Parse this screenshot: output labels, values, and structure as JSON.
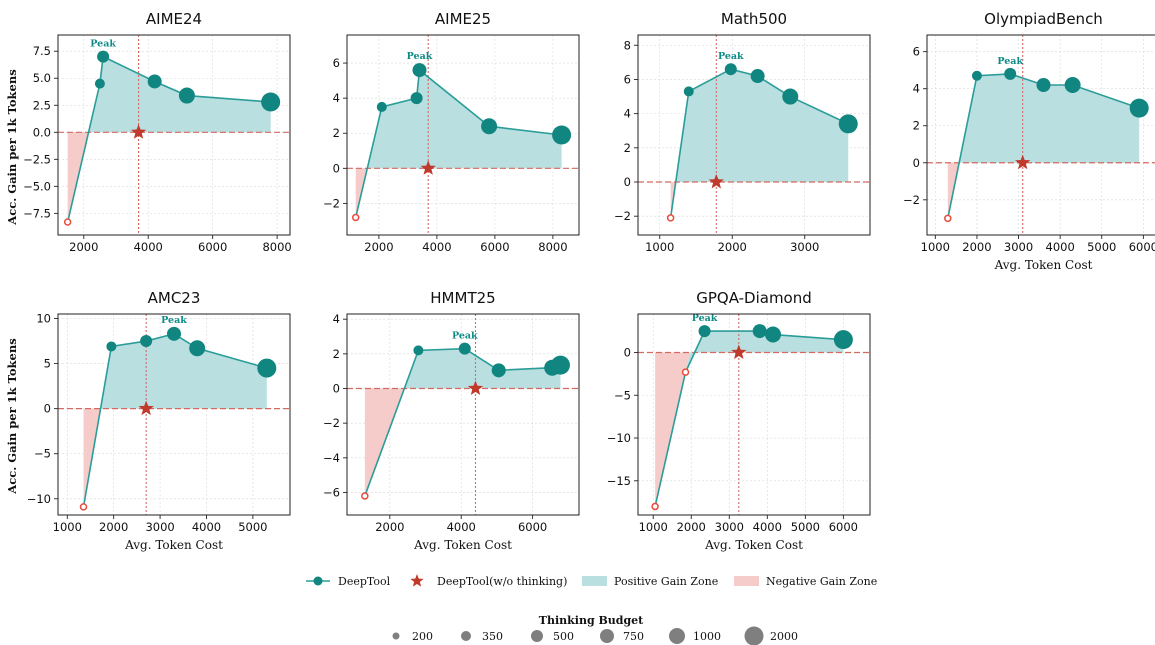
{
  "figure": {
    "y_axis_label": "Acc. Gain per 1k Tokens",
    "x_axis_label": "Avg. Token Cost"
  },
  "colors": {
    "line": "#2a9d99",
    "marker": "#11857f",
    "positive_fill": "#b9dfe0",
    "negative_fill": "#f6cccb",
    "baseline": "#d26a62",
    "star": "#c0392b",
    "neg_marker_edge": "#e74c3c",
    "peak_text": "#0e8a87"
  },
  "legend": {
    "items": [
      {
        "label": "DeepTool",
        "kind": "line-marker"
      },
      {
        "label": "DeepTool(w/o thinking)",
        "kind": "star"
      },
      {
        "label": "Positive Gain Zone",
        "kind": "pos-patch"
      },
      {
        "label": "Negative Gain Zone",
        "kind": "neg-patch"
      }
    ],
    "budget_title": "Thinking Budget",
    "budgets": [
      "200",
      "350",
      "500",
      "750",
      "1000",
      "2000"
    ]
  },
  "chart_data": [
    {
      "type": "line",
      "title": "AIME24",
      "xlabel": "",
      "ylabel": "Acc. Gain per 1k Tokens",
      "xlim": [
        1200,
        8400
      ],
      "ylim": [
        -9.5,
        9.0
      ],
      "xticks": [
        2000,
        4000,
        6000,
        8000
      ],
      "yticks": [
        -7.5,
        -5.0,
        -2.5,
        0.0,
        2.5,
        5.0,
        7.5
      ],
      "ytick_labels": [
        "−7.5",
        "−5.0",
        "−2.5",
        "0.0",
        "2.5",
        "5.0",
        "7.5"
      ],
      "x": [
        1500,
        2500,
        2600,
        4200,
        5200,
        7800
      ],
      "y": [
        -8.3,
        4.5,
        7.0,
        4.7,
        3.4,
        2.8
      ],
      "budget": [
        200,
        350,
        500,
        750,
        1000,
        2000
      ],
      "peak_label": "Peak",
      "peak_index": 2,
      "star": {
        "x": 3700,
        "y": 0.0
      }
    },
    {
      "type": "line",
      "title": "AIME25",
      "xlabel": "",
      "ylabel": "",
      "xlim": [
        900,
        8900
      ],
      "ylim": [
        -3.8,
        7.6
      ],
      "xticks": [
        2000,
        4000,
        6000,
        8000
      ],
      "yticks": [
        -2,
        0,
        2,
        4,
        6
      ],
      "ytick_labels": [
        "−2",
        "0",
        "2",
        "4",
        "6"
      ],
      "x": [
        1200,
        2100,
        3300,
        3400,
        5800,
        8300
      ],
      "y": [
        -2.8,
        3.5,
        4.0,
        5.6,
        2.4,
        1.9
      ],
      "budget": [
        200,
        350,
        500,
        750,
        1000,
        2000
      ],
      "peak_label": "Peak",
      "peak_index": 3,
      "star": {
        "x": 3700,
        "y": 0.0
      }
    },
    {
      "type": "line",
      "title": "Math500",
      "xlabel": "",
      "ylabel": "",
      "xlim": [
        700,
        3900
      ],
      "ylim": [
        -3.1,
        8.6
      ],
      "xticks": [
        1000,
        2000,
        3000
      ],
      "yticks": [
        -2,
        0,
        2,
        4,
        6,
        8
      ],
      "ytick_labels": [
        "−2",
        "0",
        "2",
        "4",
        "6",
        "8"
      ],
      "x": [
        1150,
        1400,
        1980,
        2350,
        2800,
        3600
      ],
      "y": [
        -2.1,
        5.3,
        6.6,
        6.2,
        5.0,
        3.4
      ],
      "budget": [
        200,
        350,
        500,
        750,
        1000,
        2000
      ],
      "peak_label": "Peak",
      "peak_index": 2,
      "star": {
        "x": 1780,
        "y": 0.0
      }
    },
    {
      "type": "line",
      "title": "OlympiadBench",
      "xlabel": "Avg. Token Cost",
      "ylabel": "",
      "xlim": [
        800,
        6400
      ],
      "ylim": [
        -3.9,
        6.9
      ],
      "xticks": [
        1000,
        2000,
        3000,
        4000,
        5000,
        6000
      ],
      "yticks": [
        -2,
        0,
        2,
        4,
        6
      ],
      "ytick_labels": [
        "−2",
        "0",
        "2",
        "4",
        "6"
      ],
      "x": [
        1300,
        2000,
        2800,
        3600,
        4300,
        5900
      ],
      "y": [
        -3.0,
        4.7,
        4.8,
        4.2,
        4.2,
        2.95
      ],
      "budget": [
        200,
        350,
        500,
        750,
        1000,
        2000
      ],
      "peak_label": "Peak",
      "peak_index": 2,
      "star": {
        "x": 3100,
        "y": 0.0
      }
    },
    {
      "type": "line",
      "title": "AMC23",
      "xlabel": "Avg. Token Cost",
      "ylabel": "Acc. Gain per 1k Tokens",
      "xlim": [
        800,
        5800
      ],
      "ylim": [
        -11.8,
        10.5
      ],
      "xticks": [
        1000,
        2000,
        3000,
        4000,
        5000
      ],
      "yticks": [
        -10,
        -5,
        0,
        5,
        10
      ],
      "ytick_labels": [
        "−10",
        "−5",
        "0",
        "5",
        "10"
      ],
      "x": [
        1350,
        1950,
        2700,
        3300,
        3800,
        5300
      ],
      "y": [
        -10.9,
        6.9,
        7.5,
        8.3,
        6.7,
        4.5
      ],
      "budget": [
        200,
        350,
        500,
        750,
        1000,
        2000
      ],
      "peak_label": "Peak",
      "peak_index": 3,
      "star": {
        "x": 2700,
        "y": 0.0
      }
    },
    {
      "type": "line",
      "title": "HMMT25",
      "xlabel": "Avg. Token Cost",
      "ylabel": "",
      "xlim": [
        800,
        7300
      ],
      "ylim": [
        -7.3,
        4.3
      ],
      "xticks": [
        2000,
        4000,
        6000
      ],
      "yticks": [
        -6,
        -4,
        -2,
        0,
        2,
        4
      ],
      "ytick_labels": [
        "−6",
        "−4",
        "−2",
        "0",
        "2",
        "4"
      ],
      "x": [
        1300,
        2800,
        4100,
        5050,
        6550,
        6780
      ],
      "y": [
        -6.2,
        2.2,
        2.3,
        1.05,
        1.2,
        1.35
      ],
      "budget": [
        200,
        350,
        500,
        750,
        1000,
        2000
      ],
      "peak_label": "Peak",
      "peak_index": 2,
      "star": {
        "x": 4400,
        "y": 0.0
      }
    },
    {
      "type": "line",
      "title": "GPQA-Diamond",
      "xlabel": "Avg. Token Cost",
      "ylabel": "",
      "xlim": [
        600,
        6700
      ],
      "ylim": [
        -19,
        4.5
      ],
      "xticks": [
        1000,
        2000,
        3000,
        4000,
        5000,
        6000
      ],
      "yticks": [
        -15,
        -10,
        -5,
        0
      ],
      "ytick_labels": [
        "−15",
        "−10",
        "−5",
        "0"
      ],
      "x": [
        1050,
        1850,
        2350,
        3800,
        4150,
        6000
      ],
      "y": [
        -18.0,
        -2.3,
        2.5,
        2.5,
        2.1,
        1.5
      ],
      "budget": [
        200,
        350,
        500,
        750,
        1000,
        2000
      ],
      "peak_label": "Peak",
      "peak_index": 2,
      "star": {
        "x": 3250,
        "y": 0.0
      }
    }
  ]
}
